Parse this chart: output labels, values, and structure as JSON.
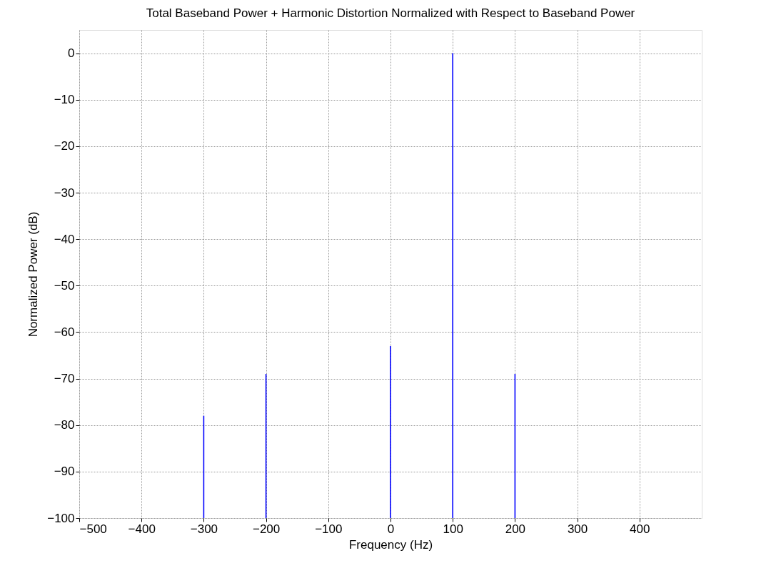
{
  "chart_data": {
    "type": "bar",
    "title": "Total Baseband Power + Harmonic Distortion Normalized with Respect to Baseband Power",
    "xlabel": "Frequency (Hz)",
    "ylabel": "Normalized Power (dB)",
    "x": [
      -300,
      -200,
      0,
      100,
      200
    ],
    "base": [
      -100,
      -100,
      -100,
      -100,
      -100
    ],
    "values": [
      22,
      31,
      37,
      100,
      31
    ],
    "color": "#0000ff",
    "xlim": [
      -500,
      500
    ],
    "xticks": [
      -500,
      -400,
      -300,
      -200,
      -100,
      0,
      100,
      200,
      300,
      400
    ],
    "ylim": [
      -100,
      5
    ],
    "yticks": [
      -100,
      -90,
      -80,
      -70,
      -60,
      -50,
      -40,
      -30,
      -20,
      -10,
      0
    ],
    "grid": true
  }
}
